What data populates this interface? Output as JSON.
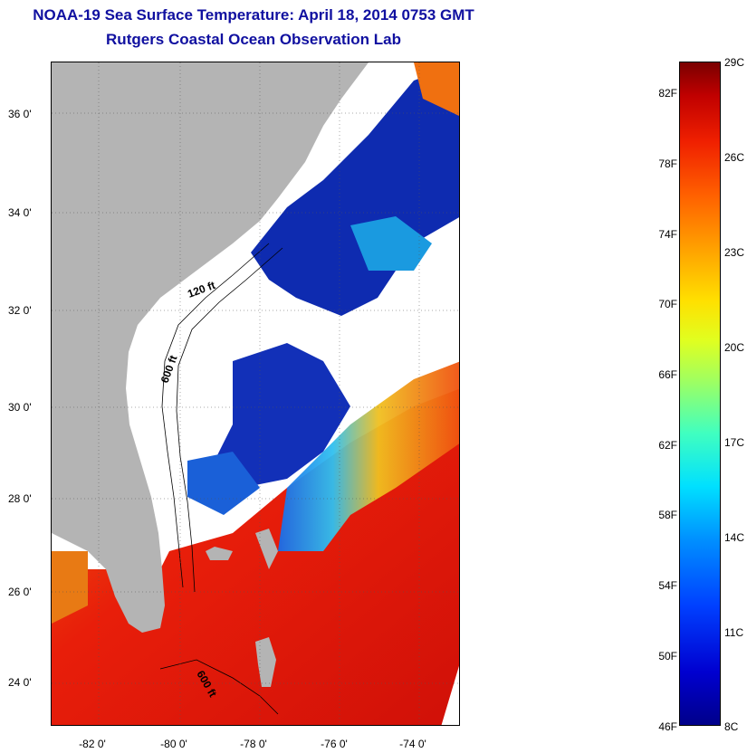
{
  "title": "NOAA-19 Sea Surface Temperature:  April 18, 2014 0753 GMT",
  "subtitle": "Rutgers Coastal Ocean Observation Lab",
  "map": {
    "lat_labels": [
      "36 0'",
      "34 0'",
      "32 0'",
      "30 0'",
      "28 0'",
      "26 0'",
      "24 0'"
    ],
    "lon_labels": [
      "-82 0'",
      "-80 0'",
      "-78 0'",
      "-76 0'",
      "-74 0'"
    ],
    "contour_labels": [
      "120 ft",
      "600 ft",
      "600 ft"
    ],
    "colors": {
      "land": "#b4b4b4",
      "cloud": "#ffffff",
      "cold": "#0a1aa8",
      "warm": "#e8200a"
    }
  },
  "colorbar": {
    "fahrenheit": [
      "82F",
      "78F",
      "74F",
      "70F",
      "66F",
      "62F",
      "58F",
      "54F",
      "50F",
      "46F"
    ],
    "celsius": [
      "29C",
      "26C",
      "23C",
      "20C",
      "17C",
      "14C",
      "11C",
      "8C"
    ],
    "top_color": "#7a0000",
    "bottom_color": "#00008a"
  }
}
